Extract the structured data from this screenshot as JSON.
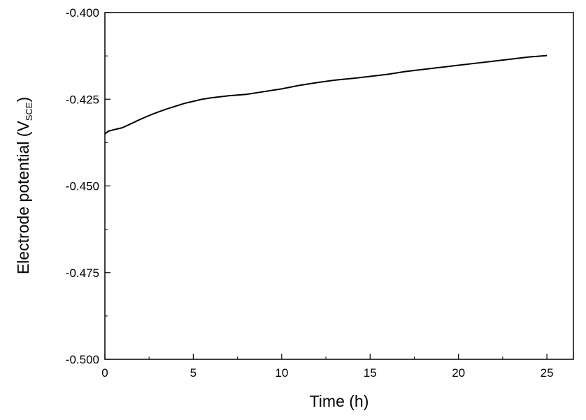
{
  "chart_data": {
    "type": "line",
    "xlabel": "Time (h)",
    "ylabel": {
      "main": "Electrode potential (V",
      "subscript": "SCE",
      "close": ")"
    },
    "xlim": [
      0,
      26.5
    ],
    "ylim": [
      -0.5,
      -0.4
    ],
    "x_ticks": [
      0,
      5,
      10,
      15,
      20,
      25
    ],
    "x_tick_labels": [
      "0",
      "5",
      "10",
      "15",
      "20",
      "25"
    ],
    "y_ticks": [
      -0.5,
      -0.475,
      -0.45,
      -0.425,
      -0.4
    ],
    "y_tick_labels": [
      "-0.500",
      "-0.475",
      "-0.450",
      "-0.425",
      "-0.400"
    ],
    "grid": false,
    "series": [
      {
        "color": "#000000",
        "x": [
          0,
          0.2,
          0.5,
          1.0,
          1.5,
          2.0,
          2.5,
          3.0,
          3.5,
          4.0,
          4.5,
          5.0,
          5.5,
          6.0,
          7.0,
          8.0,
          9.0,
          10.0,
          11.0,
          12.0,
          13.0,
          14.0,
          15.0,
          16.0,
          17.0,
          18.0,
          19.0,
          20.0,
          21.0,
          22.0,
          23.0,
          24.0,
          25.0
        ],
        "y": [
          -0.435,
          -0.4342,
          -0.4338,
          -0.4332,
          -0.432,
          -0.4308,
          -0.4297,
          -0.4287,
          -0.4278,
          -0.427,
          -0.4262,
          -0.4256,
          -0.425,
          -0.4246,
          -0.424,
          -0.4236,
          -0.4228,
          -0.422,
          -0.421,
          -0.4202,
          -0.4195,
          -0.419,
          -0.4184,
          -0.4178,
          -0.417,
          -0.4164,
          -0.4158,
          -0.4152,
          -0.4146,
          -0.414,
          -0.4134,
          -0.4128,
          -0.4124
        ]
      }
    ]
  }
}
